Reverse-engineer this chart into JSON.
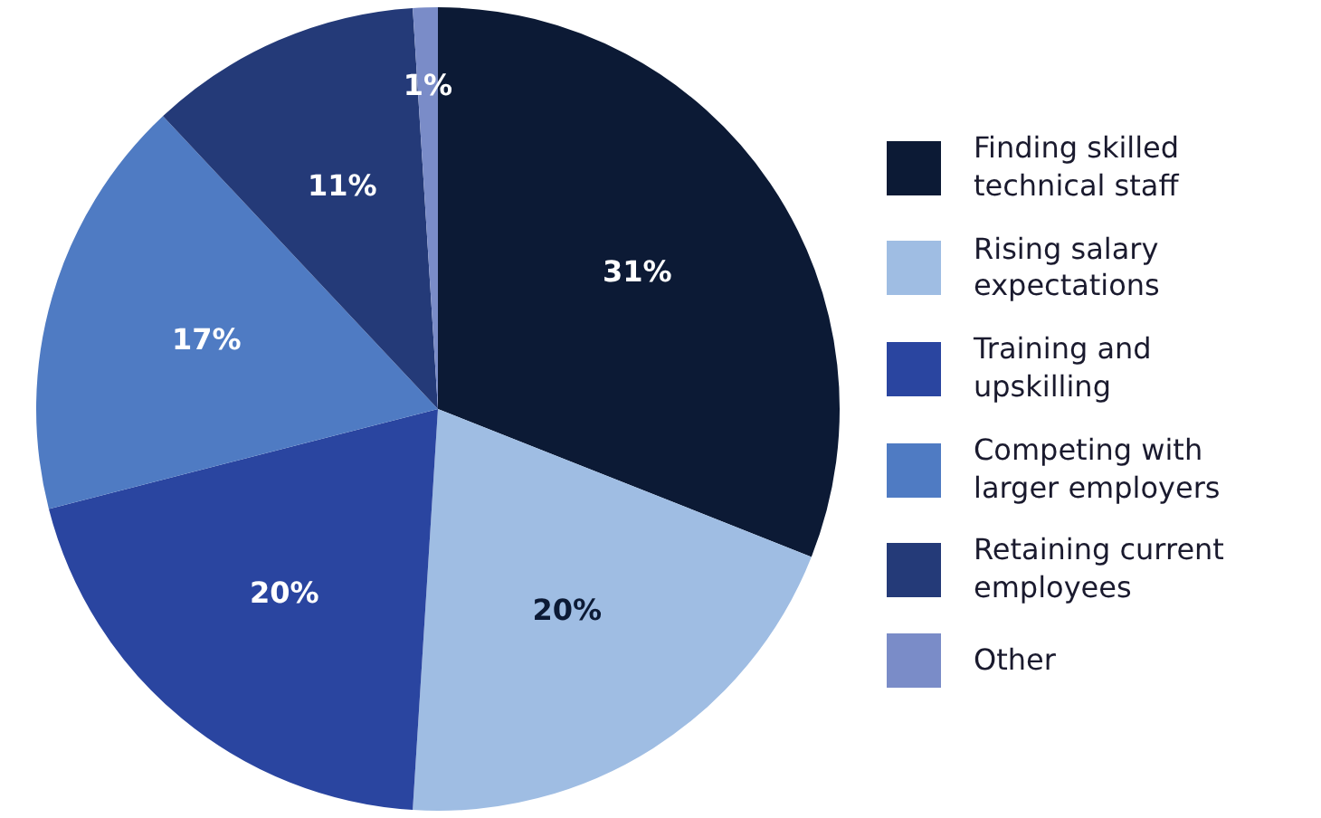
{
  "chart_data": {
    "type": "pie",
    "categories": [
      "Finding skilled technical staff",
      "Rising salary expectations",
      "Training and upskilling",
      "Competing with larger employers",
      "Retaining current employees",
      "Other"
    ],
    "values": [
      31,
      20,
      20,
      17,
      11,
      1
    ],
    "value_labels": [
      "31%",
      "20%",
      "20%",
      "17%",
      "11%",
      "1%"
    ],
    "colors": [
      "#0c1a35",
      "#9fbde3",
      "#2a45a0",
      "#4f7bc3",
      "#243a78",
      "#7a8cc8"
    ],
    "legend": "right"
  }
}
